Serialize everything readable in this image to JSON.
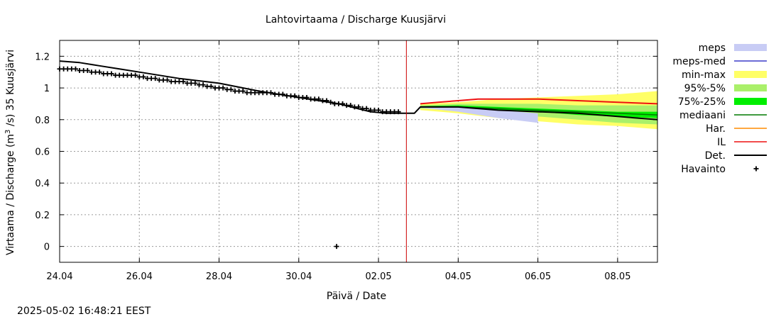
{
  "chart_data": {
    "type": "line",
    "title": "Lahtovirtaama / Discharge  Kuusjärvi",
    "xlabel": "Päivä / Date",
    "ylabel": {
      "prefix": "Virtaama / Discharge (m",
      "sup": "3",
      "suffix": " /s)  35 Kuusjärvi"
    },
    "timestamp": "2025-05-02 16:48:21 EEST",
    "x_unit": "days from 24.04",
    "xlim": [
      0,
      15
    ],
    "ylim": [
      -0.1,
      1.3
    ],
    "grid": true,
    "x_ticks": [
      {
        "x": 0,
        "label": "24.04"
      },
      {
        "x": 2,
        "label": "26.04"
      },
      {
        "x": 4,
        "label": "28.04"
      },
      {
        "x": 6,
        "label": "30.04"
      },
      {
        "x": 8,
        "label": "02.05"
      },
      {
        "x": 10,
        "label": "04.05"
      },
      {
        "x": 12,
        "label": "06.05"
      },
      {
        "x": 14,
        "label": "08.05"
      }
    ],
    "y_ticks": [
      {
        "y": 0,
        "label": "0"
      },
      {
        "y": 0.2,
        "label": "0.2"
      },
      {
        "y": 0.4,
        "label": "0.4"
      },
      {
        "y": 0.6,
        "label": "0.6"
      },
      {
        "y": 0.8,
        "label": "0.8"
      },
      {
        "y": 1.0,
        "label": "1"
      },
      {
        "y": 1.2,
        "label": "1.2"
      }
    ],
    "current_time_x": 8.7,
    "colors": {
      "meps": "#c8ccf5",
      "meps_med": "#3c3cc8",
      "minmax": "#ffff66",
      "p95_5": "#aaf06a",
      "p75_25": "#00ee00",
      "mediaani": "#007a00",
      "har": "#ff8c00",
      "il": "#ee1111",
      "det": "#000000",
      "now_line": "#cc0000"
    },
    "legend": [
      {
        "key": "meps",
        "label": "meps",
        "style": "band"
      },
      {
        "key": "meps_med",
        "label": "meps-med",
        "style": "line"
      },
      {
        "key": "minmax",
        "label": "min-max",
        "style": "band"
      },
      {
        "key": "p95_5",
        "label": "95%-5%",
        "style": "band"
      },
      {
        "key": "p75_25",
        "label": "75%-25%",
        "style": "band"
      },
      {
        "key": "mediaani",
        "label": "mediaani",
        "style": "line"
      },
      {
        "key": "har",
        "label": "Har.",
        "style": "line"
      },
      {
        "key": "il",
        "label": "IL",
        "style": "line"
      },
      {
        "key": "det",
        "label": "Det.",
        "style": "line"
      },
      {
        "key": "havainto",
        "label": "Havainto",
        "style": "marker"
      }
    ],
    "series": {
      "det": [
        [
          0,
          1.17
        ],
        [
          0.5,
          1.16
        ],
        [
          1,
          1.14
        ],
        [
          1.5,
          1.12
        ],
        [
          2,
          1.1
        ],
        [
          3,
          1.06
        ],
        [
          4,
          1.03
        ],
        [
          5,
          0.98
        ],
        [
          6,
          0.94
        ],
        [
          7,
          0.9
        ],
        [
          7.8,
          0.85
        ],
        [
          8.2,
          0.84
        ],
        [
          8.9,
          0.84
        ],
        [
          9.05,
          0.88
        ],
        [
          9.5,
          0.88
        ],
        [
          10,
          0.88
        ],
        [
          11,
          0.86
        ],
        [
          12,
          0.85
        ],
        [
          13,
          0.84
        ],
        [
          14,
          0.82
        ],
        [
          15,
          0.8
        ]
      ],
      "il": [
        [
          9.05,
          0.9
        ],
        [
          9.5,
          0.91
        ],
        [
          10,
          0.92
        ],
        [
          10.5,
          0.93
        ],
        [
          11,
          0.93
        ],
        [
          12,
          0.93
        ],
        [
          13,
          0.92
        ],
        [
          14,
          0.91
        ],
        [
          15,
          0.9
        ]
      ],
      "mediaani": [
        [
          9.05,
          0.88
        ],
        [
          10,
          0.88
        ],
        [
          11,
          0.87
        ],
        [
          12,
          0.86
        ],
        [
          13,
          0.85
        ],
        [
          14,
          0.84
        ],
        [
          15,
          0.83
        ]
      ],
      "minmax": {
        "x": [
          9.05,
          10,
          11,
          12,
          13,
          14,
          15
        ],
        "upper": [
          0.9,
          0.91,
          0.93,
          0.94,
          0.95,
          0.96,
          0.98
        ],
        "lower": [
          0.86,
          0.84,
          0.81,
          0.79,
          0.77,
          0.76,
          0.74
        ]
      },
      "p95_5": {
        "x": [
          9.05,
          10,
          11,
          12,
          13,
          14,
          15
        ],
        "upper": [
          0.89,
          0.9,
          0.9,
          0.9,
          0.89,
          0.89,
          0.89
        ],
        "lower": [
          0.87,
          0.86,
          0.84,
          0.82,
          0.8,
          0.78,
          0.77
        ]
      },
      "p75_25": {
        "x": [
          9.05,
          10,
          11,
          12,
          13,
          14,
          15
        ],
        "upper": [
          0.885,
          0.89,
          0.88,
          0.87,
          0.86,
          0.85,
          0.85
        ],
        "lower": [
          0.875,
          0.87,
          0.86,
          0.85,
          0.83,
          0.82,
          0.81
        ]
      },
      "meps": {
        "x": [
          9.05,
          10,
          11,
          12
        ],
        "upper": [
          0.885,
          0.88,
          0.86,
          0.84
        ],
        "lower": [
          0.875,
          0.85,
          0.81,
          0.78
        ]
      },
      "havainto": [
        [
          0,
          1.12
        ],
        [
          0.1,
          1.12
        ],
        [
          0.2,
          1.12
        ],
        [
          0.3,
          1.12
        ],
        [
          0.4,
          1.12
        ],
        [
          0.5,
          1.11
        ],
        [
          0.6,
          1.11
        ],
        [
          0.7,
          1.11
        ],
        [
          0.8,
          1.1
        ],
        [
          0.9,
          1.1
        ],
        [
          1.0,
          1.1
        ],
        [
          1.1,
          1.09
        ],
        [
          1.2,
          1.09
        ],
        [
          1.3,
          1.09
        ],
        [
          1.4,
          1.08
        ],
        [
          1.5,
          1.08
        ],
        [
          1.6,
          1.08
        ],
        [
          1.7,
          1.08
        ],
        [
          1.8,
          1.08
        ],
        [
          1.9,
          1.08
        ],
        [
          2.0,
          1.07
        ],
        [
          2.1,
          1.07
        ],
        [
          2.2,
          1.06
        ],
        [
          2.3,
          1.06
        ],
        [
          2.4,
          1.06
        ],
        [
          2.5,
          1.05
        ],
        [
          2.6,
          1.05
        ],
        [
          2.7,
          1.05
        ],
        [
          2.8,
          1.04
        ],
        [
          2.9,
          1.04
        ],
        [
          3.0,
          1.04
        ],
        [
          3.1,
          1.04
        ],
        [
          3.2,
          1.03
        ],
        [
          3.3,
          1.03
        ],
        [
          3.4,
          1.03
        ],
        [
          3.5,
          1.02
        ],
        [
          3.6,
          1.02
        ],
        [
          3.7,
          1.01
        ],
        [
          3.8,
          1.01
        ],
        [
          3.9,
          1.0
        ],
        [
          4.0,
          1.0
        ],
        [
          4.1,
          1.0
        ],
        [
          4.2,
          0.99
        ],
        [
          4.3,
          0.99
        ],
        [
          4.4,
          0.98
        ],
        [
          4.5,
          0.98
        ],
        [
          4.6,
          0.98
        ],
        [
          4.7,
          0.97
        ],
        [
          4.8,
          0.97
        ],
        [
          4.9,
          0.97
        ],
        [
          5.0,
          0.97
        ],
        [
          5.1,
          0.97
        ],
        [
          5.2,
          0.97
        ],
        [
          5.3,
          0.97
        ],
        [
          5.4,
          0.96
        ],
        [
          5.5,
          0.96
        ],
        [
          5.6,
          0.96
        ],
        [
          5.7,
          0.95
        ],
        [
          5.8,
          0.95
        ],
        [
          5.9,
          0.95
        ],
        [
          6.0,
          0.94
        ],
        [
          6.1,
          0.94
        ],
        [
          6.2,
          0.94
        ],
        [
          6.3,
          0.93
        ],
        [
          6.4,
          0.93
        ],
        [
          6.5,
          0.93
        ],
        [
          6.6,
          0.92
        ],
        [
          6.7,
          0.92
        ],
        [
          6.8,
          0.91
        ],
        [
          6.9,
          0.9
        ],
        [
          7.0,
          0.9
        ],
        [
          7.1,
          0.9
        ],
        [
          7.2,
          0.89
        ],
        [
          7.3,
          0.89
        ],
        [
          7.4,
          0.88
        ],
        [
          7.5,
          0.88
        ],
        [
          7.6,
          0.87
        ],
        [
          7.7,
          0.87
        ],
        [
          7.8,
          0.86
        ],
        [
          7.9,
          0.86
        ],
        [
          8.0,
          0.86
        ],
        [
          8.1,
          0.85
        ],
        [
          8.2,
          0.85
        ],
        [
          8.3,
          0.85
        ],
        [
          8.4,
          0.85
        ],
        [
          8.5,
          0.85
        ],
        [
          6.95,
          0.0
        ]
      ]
    }
  }
}
